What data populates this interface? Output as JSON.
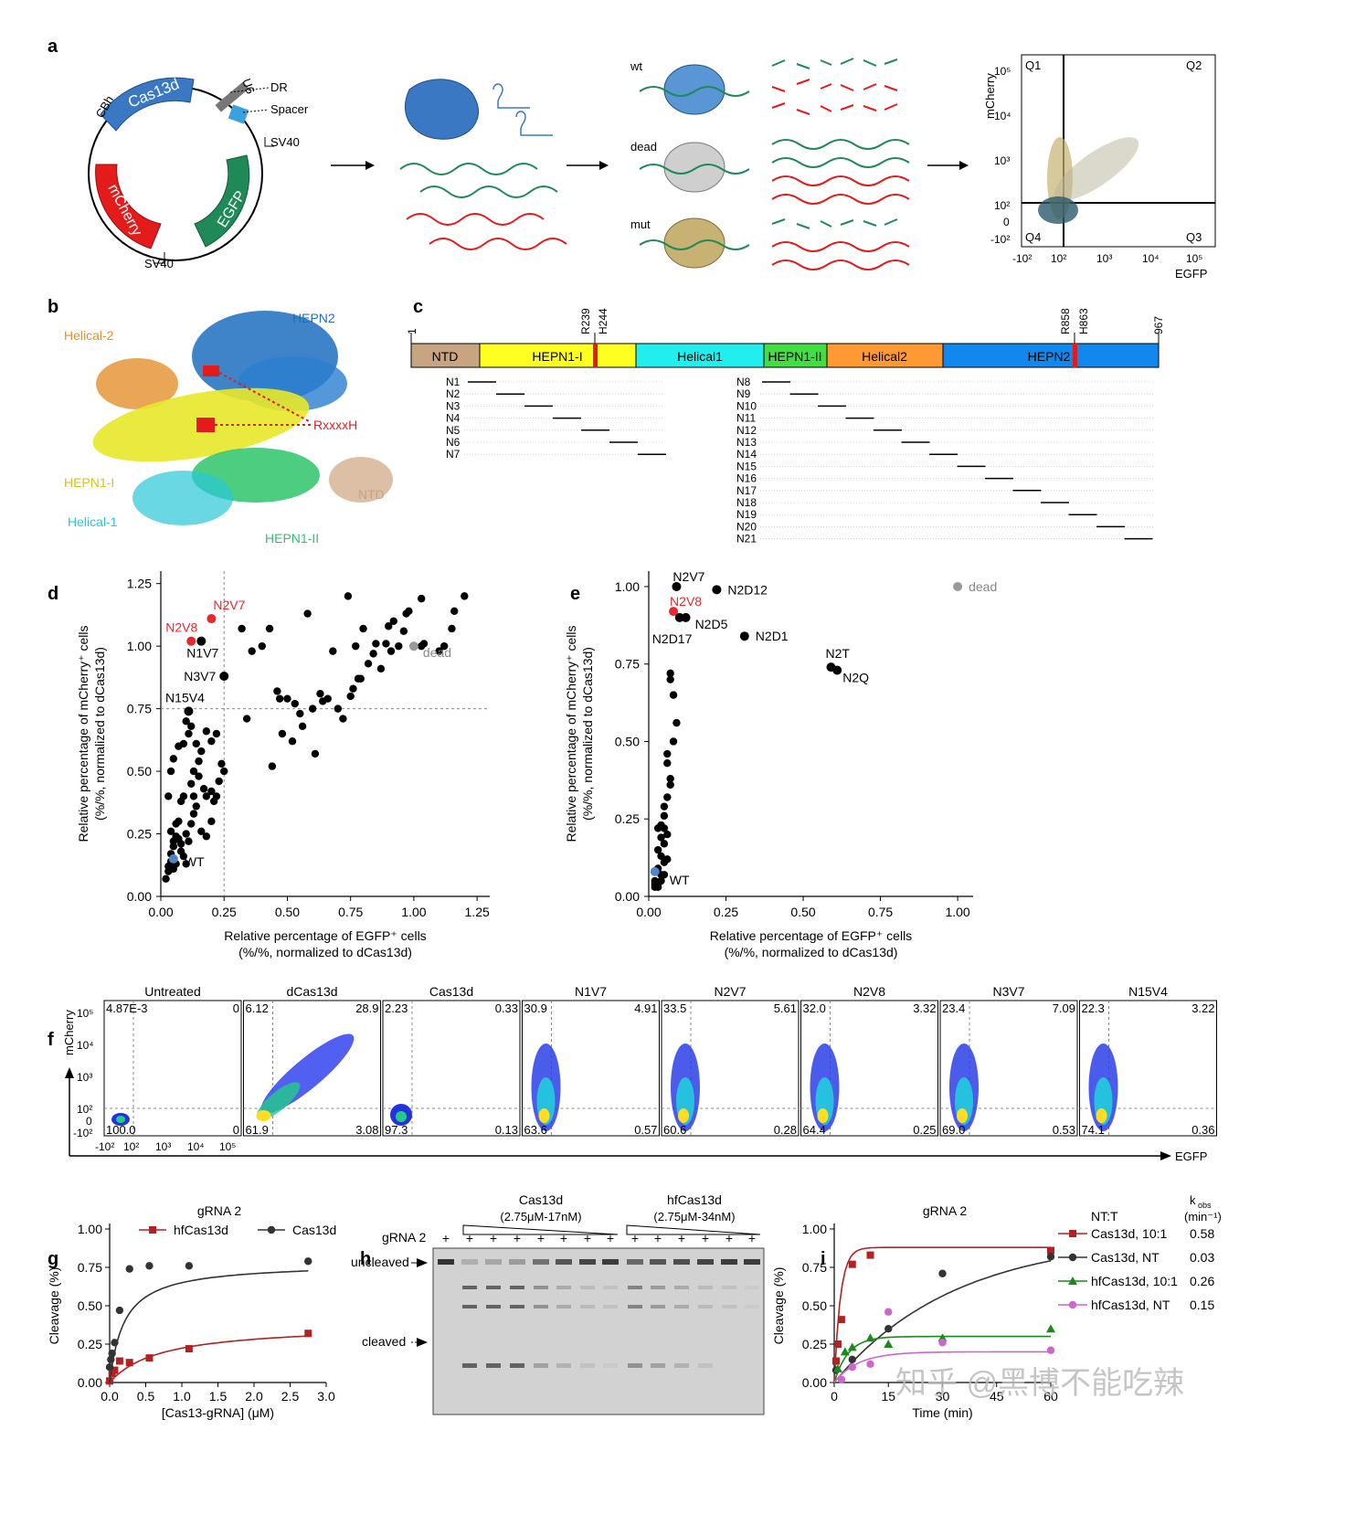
{
  "panel_labels": [
    "a",
    "b",
    "c",
    "d",
    "e",
    "f",
    "g",
    "h",
    "i"
  ],
  "panel_a": {
    "plasmid": {
      "cas": "Cas13d",
      "cbh": "CBh",
      "u6": "U6",
      "dr": "DR",
      "spacer": "Spacer",
      "sv40_top": "SV40",
      "sv40_bottom": "SV40",
      "mcherry": "mCherry",
      "egfp": "EGFP"
    },
    "states": [
      "wt",
      "dead",
      "mut"
    ],
    "flow": {
      "ylabel": "mCherry",
      "xlabel": "EGFP",
      "q1": "Q1",
      "q2": "Q2",
      "q3": "Q3",
      "q4": "Q4",
      "yticks": [
        "10⁵",
        "10⁴",
        "10³",
        "10²",
        "0",
        "-10²"
      ],
      "xticks": [
        "-10²",
        "10²",
        "10³",
        "10⁴",
        "10⁵"
      ]
    }
  },
  "panel_b": {
    "labels": [
      "HEPN2",
      "Helical-2",
      "HEPN1-I",
      "Helical-1",
      "HEPN1-II",
      "NTD",
      "RxxxxH"
    ]
  },
  "panel_c": {
    "domains": [
      "NTD",
      "HEPN1-I",
      "Helical1",
      "HEPN1-II",
      "Helical2",
      "HEPN2"
    ],
    "domain_colors": [
      "#c9a480",
      "#ffff22",
      "#22eeee",
      "#44dd44",
      "#ff9933",
      "#1188ee"
    ],
    "positions": [
      "1",
      "R239",
      "H244",
      "R858",
      "H863",
      "967"
    ],
    "rows_left": [
      "N1",
      "N2",
      "N3",
      "N4",
      "N5",
      "N6",
      "N7"
    ],
    "rows_right": [
      "N8",
      "N9",
      "N10",
      "N11",
      "N12",
      "N13",
      "N14",
      "N15",
      "N16",
      "N17",
      "N18",
      "N19",
      "N20",
      "N21"
    ]
  },
  "panel_f": {
    "ylabel": "mCherry",
    "xlabel": "EGFP",
    "yticks": [
      "10⁵",
      "10⁴",
      "10³",
      "10²",
      "0",
      "-10²"
    ],
    "xticks": [
      "-10²",
      "10²",
      "10³",
      "10⁴",
      "10⁵"
    ],
    "plots": [
      {
        "title": "Untreated",
        "q1": "4.87E-3",
        "q2": "0",
        "q4": "100.0",
        "q3": "0"
      },
      {
        "title": "dCas13d",
        "q1": "6.12",
        "q2": "28.9",
        "q4": "61.9",
        "q3": "3.08"
      },
      {
        "title": "Cas13d",
        "q1": "2.23",
        "q2": "0.33",
        "q4": "97.3",
        "q3": "0.13"
      },
      {
        "title": "N1V7",
        "q1": "30.9",
        "q2": "4.91",
        "q4": "63.6",
        "q3": "0.57"
      },
      {
        "title": "N2V7",
        "q1": "33.5",
        "q2": "5.61",
        "q4": "60.6",
        "q3": "0.28"
      },
      {
        "title": "N2V8",
        "q1": "32.0",
        "q2": "3.32",
        "q4": "64.4",
        "q3": "0.25"
      },
      {
        "title": "N3V7",
        "q1": "23.4",
        "q2": "7.09",
        "q4": "69.0",
        "q3": "0.53"
      },
      {
        "title": "N15V4",
        "q1": "22.3",
        "q2": "3.22",
        "q4": "74.1",
        "q3": "0.36"
      }
    ]
  },
  "panel_h": {
    "group1": "Cas13d",
    "group1_range": "(2.75μM-17nM)",
    "group2": "hfCas13d",
    "group2_range": "(2.75μM-34nM)",
    "row_label": "gRNA 2",
    "plus": "+",
    "uncleaved": "uncleaved",
    "cleaved": "cleaved"
  },
  "watermark": "知乎 @黑博不能吃辣",
  "chart_data": [
    {
      "id": "d",
      "type": "scatter",
      "xlabel": "Relative percentage of EGFP⁺ cells",
      "xlabel2": "(%/%, normalized to dCas13d)",
      "ylabel": "Relative percentage of mCherry⁺ cells",
      "ylabel2": "(%/%, normalized to dCas13d)",
      "xlim": [
        0,
        1.3
      ],
      "ylim": [
        0,
        1.3
      ],
      "xticks": [
        0,
        0.25,
        0.5,
        0.75,
        1.0,
        1.25
      ],
      "xtick_labels": [
        "0.00",
        "0.25",
        "0.50",
        "0.75",
        "1.00",
        "1.25"
      ],
      "yticks": [
        0,
        0.25,
        0.5,
        0.75,
        1.0,
        1.25
      ],
      "ytick_labels": [
        "0.00",
        "0.25",
        "0.50",
        "0.75",
        "1.00",
        "1.25"
      ],
      "threshold_x": 0.25,
      "threshold_y": 0.75,
      "labeled": [
        {
          "name": "N2V7",
          "x": 0.2,
          "y": 1.11,
          "color": "#e8282e",
          "text_color": "#e8282e"
        },
        {
          "name": "N2V8",
          "x": 0.12,
          "y": 1.02,
          "color": "#e8282e",
          "text_color": "#e8282e"
        },
        {
          "name": "N1V7",
          "x": 0.16,
          "y": 1.02,
          "color": "#000000",
          "text_color": "#000000"
        },
        {
          "name": "N3V7",
          "x": 0.25,
          "y": 0.88,
          "color": "#000000",
          "text_color": "#000000"
        },
        {
          "name": "N15V4",
          "x": 0.11,
          "y": 0.74,
          "color": "#000000",
          "text_color": "#000000"
        },
        {
          "name": "WT",
          "x": 0.05,
          "y": 0.15,
          "color": "#4a86c8",
          "text_color": "#000000"
        },
        {
          "name": "dead",
          "x": 1.0,
          "y": 1.0,
          "color": "#999999",
          "text_color": "#888888"
        }
      ],
      "points": [
        [
          0.02,
          0.07
        ],
        [
          0.03,
          0.1
        ],
        [
          0.03,
          0.12
        ],
        [
          0.04,
          0.14
        ],
        [
          0.04,
          0.17
        ],
        [
          0.05,
          0.2
        ],
        [
          0.05,
          0.22
        ],
        [
          0.06,
          0.24
        ],
        [
          0.07,
          0.23
        ],
        [
          0.08,
          0.21
        ],
        [
          0.08,
          0.18
        ],
        [
          0.06,
          0.13
        ],
        [
          0.05,
          0.11
        ],
        [
          0.09,
          0.16
        ],
        [
          0.1,
          0.13
        ],
        [
          0.1,
          0.25
        ],
        [
          0.11,
          0.22
        ],
        [
          0.07,
          0.3
        ],
        [
          0.08,
          0.38
        ],
        [
          0.09,
          0.4
        ],
        [
          0.12,
          0.29
        ],
        [
          0.13,
          0.33
        ],
        [
          0.14,
          0.36
        ],
        [
          0.12,
          0.45
        ],
        [
          0.13,
          0.5
        ],
        [
          0.15,
          0.48
        ],
        [
          0.17,
          0.43
        ],
        [
          0.18,
          0.4
        ],
        [
          0.2,
          0.42
        ],
        [
          0.21,
          0.38
        ],
        [
          0.22,
          0.4
        ],
        [
          0.16,
          0.26
        ],
        [
          0.18,
          0.24
        ],
        [
          0.2,
          0.3
        ],
        [
          0.03,
          0.4
        ],
        [
          0.04,
          0.5
        ],
        [
          0.05,
          0.55
        ],
        [
          0.07,
          0.6
        ],
        [
          0.09,
          0.61
        ],
        [
          0.11,
          0.65
        ],
        [
          0.1,
          0.7
        ],
        [
          0.12,
          0.68
        ],
        [
          0.14,
          0.61
        ],
        [
          0.16,
          0.58
        ],
        [
          0.18,
          0.66
        ],
        [
          0.2,
          0.62
        ],
        [
          0.22,
          0.65
        ],
        [
          0.24,
          0.53
        ],
        [
          0.23,
          0.46
        ],
        [
          0.25,
          0.5
        ],
        [
          0.15,
          0.54
        ],
        [
          0.13,
          0.4
        ],
        [
          0.06,
          0.29
        ],
        [
          0.04,
          0.26
        ],
        [
          0.32,
          1.07
        ],
        [
          0.34,
          0.71
        ],
        [
          0.36,
          0.98
        ],
        [
          0.4,
          1.0
        ],
        [
          0.43,
          1.07
        ],
        [
          0.44,
          0.52
        ],
        [
          0.46,
          0.82
        ],
        [
          0.47,
          0.79
        ],
        [
          0.48,
          0.65
        ],
        [
          0.5,
          0.79
        ],
        [
          0.52,
          0.62
        ],
        [
          0.53,
          0.77
        ],
        [
          0.55,
          0.73
        ],
        [
          0.56,
          0.68
        ],
        [
          0.58,
          1.13
        ],
        [
          0.6,
          0.75
        ],
        [
          0.61,
          0.57
        ],
        [
          0.63,
          0.81
        ],
        [
          0.64,
          0.78
        ],
        [
          0.66,
          0.79
        ],
        [
          0.68,
          0.98
        ],
        [
          0.7,
          0.75
        ],
        [
          0.72,
          0.71
        ],
        [
          0.74,
          1.2
        ],
        [
          0.75,
          0.8
        ],
        [
          0.76,
          0.83
        ],
        [
          0.78,
          0.87
        ],
        [
          0.79,
          0.87
        ],
        [
          0.82,
          0.93
        ],
        [
          0.84,
          0.97
        ],
        [
          0.87,
          0.91
        ],
        [
          0.89,
          1.01
        ],
        [
          0.91,
          0.98
        ],
        [
          0.92,
          1.1
        ],
        [
          0.94,
          1.0
        ],
        [
          0.96,
          1.06
        ],
        [
          0.98,
          1.14
        ],
        [
          1.03,
          1.19
        ],
        [
          1.04,
          1.01
        ],
        [
          1.1,
          0.98
        ],
        [
          1.12,
          1.0
        ],
        [
          1.15,
          1.07
        ],
        [
          1.16,
          1.14
        ],
        [
          1.2,
          1.2
        ],
        [
          1.03,
          1.0
        ],
        [
          0.77,
          1.0
        ],
        [
          0.8,
          1.07
        ],
        [
          0.85,
          1.01
        ],
        [
          0.9,
          1.08
        ],
        [
          0.97,
          1.13
        ]
      ]
    },
    {
      "id": "e",
      "type": "scatter",
      "xlabel": "Relative percentage of EGFP⁺ cells",
      "xlabel2": "(%/%, normalized to dCas13d)",
      "ylabel": "Relative percentage of mCherry⁺ cells",
      "ylabel2": "(%/%, normalized to dCas13d)",
      "xlim": [
        0,
        1.05
      ],
      "ylim": [
        0,
        1.05
      ],
      "xticks": [
        0,
        0.25,
        0.5,
        0.75,
        1.0
      ],
      "xtick_labels": [
        "0.00",
        "0.25",
        "0.50",
        "0.75",
        "1.00"
      ],
      "yticks": [
        0,
        0.25,
        0.5,
        0.75,
        1.0
      ],
      "ytick_labels": [
        "0.00",
        "0.25",
        "0.50",
        "0.75",
        "1.00"
      ],
      "labeled": [
        {
          "name": "N2V7",
          "x": 0.09,
          "y": 1.0,
          "color": "#000000",
          "text_color": "#000000"
        },
        {
          "name": "N2D12",
          "x": 0.22,
          "y": 0.99,
          "color": "#000000",
          "text_color": "#000000"
        },
        {
          "name": "N2V8",
          "x": 0.08,
          "y": 0.92,
          "color": "#e8282e",
          "text_color": "#e8282e"
        },
        {
          "name": "N2D5",
          "x": 0.12,
          "y": 0.9,
          "color": "#000000",
          "text_color": "#000000"
        },
        {
          "name": "N2D17",
          "x": 0.1,
          "y": 0.9,
          "color": "#000000",
          "text_color": "#000000"
        },
        {
          "name": "N2D1",
          "x": 0.31,
          "y": 0.84,
          "color": "#000000",
          "text_color": "#000000"
        },
        {
          "name": "N2T",
          "x": 0.59,
          "y": 0.74,
          "color": "#000000",
          "text_color": "#000000"
        },
        {
          "name": "N2Q",
          "x": 0.61,
          "y": 0.73,
          "color": "#000000",
          "text_color": "#000000"
        },
        {
          "name": "WT",
          "x": 0.02,
          "y": 0.08,
          "color": "#4a86c8",
          "text_color": "#000000"
        },
        {
          "name": "dead",
          "x": 1.0,
          "y": 1.0,
          "color": "#999999",
          "text_color": "#888888"
        }
      ],
      "points": [
        [
          0.07,
          0.72
        ],
        [
          0.07,
          0.7
        ],
        [
          0.08,
          0.65
        ],
        [
          0.09,
          0.56
        ],
        [
          0.08,
          0.5
        ],
        [
          0.06,
          0.46
        ],
        [
          0.06,
          0.43
        ],
        [
          0.07,
          0.38
        ],
        [
          0.07,
          0.36
        ],
        [
          0.06,
          0.32
        ],
        [
          0.05,
          0.29
        ],
        [
          0.05,
          0.26
        ],
        [
          0.04,
          0.23
        ],
        [
          0.05,
          0.22
        ],
        [
          0.06,
          0.2
        ],
        [
          0.03,
          0.22
        ],
        [
          0.04,
          0.19
        ],
        [
          0.05,
          0.17
        ],
        [
          0.03,
          0.15
        ],
        [
          0.04,
          0.13
        ],
        [
          0.05,
          0.11
        ],
        [
          0.03,
          0.09
        ],
        [
          0.04,
          0.07
        ],
        [
          0.02,
          0.05
        ],
        [
          0.02,
          0.04
        ],
        [
          0.03,
          0.04
        ],
        [
          0.03,
          0.03
        ],
        [
          0.02,
          0.03
        ],
        [
          0.04,
          0.05
        ],
        [
          0.06,
          0.12
        ],
        [
          0.05,
          0.07
        ]
      ]
    },
    {
      "id": "g",
      "type": "line",
      "title": "gRNA 2",
      "xlabel": "[Cas13-gRNA] (μM)",
      "ylabel": "Cleavage (%)",
      "xlim": [
        0,
        3.0
      ],
      "ylim": [
        0,
        1.0
      ],
      "xticks": [
        0,
        0.5,
        1.0,
        1.5,
        2.0,
        2.5,
        3.0
      ],
      "xtick_labels": [
        "0.0",
        "0.5",
        "1.0",
        "1.5",
        "2.0",
        "2.5",
        "3.0"
      ],
      "yticks": [
        0,
        0.25,
        0.5,
        0.75,
        1.0
      ],
      "ytick_labels": [
        "0.00",
        "0.25",
        "0.50",
        "0.75",
        "1.00"
      ],
      "series": [
        {
          "name": "hfCas13d",
          "color": "#b22222",
          "marker": "square",
          "x": [
            0.0,
            0.034,
            0.069,
            0.138,
            0.275,
            0.55,
            1.1,
            2.75
          ],
          "y": [
            0.01,
            0.06,
            0.08,
            0.14,
            0.13,
            0.16,
            0.22,
            0.32
          ],
          "fit": {
            "vmax": 0.38,
            "km": 0.7
          }
        },
        {
          "name": "Cas13d",
          "color": "#333333",
          "marker": "circle",
          "x": [
            0.0,
            0.017,
            0.034,
            0.069,
            0.138,
            0.275,
            0.55,
            1.1,
            2.75
          ],
          "y": [
            0.1,
            0.15,
            0.19,
            0.26,
            0.47,
            0.74,
            0.76,
            0.76,
            0.79
          ],
          "fit": {
            "vmax": 0.78,
            "km": 0.2
          }
        }
      ]
    },
    {
      "id": "i",
      "type": "line",
      "title": "gRNA 2",
      "xlabel": "Time (min)",
      "ylabel": "Cleavage (%)",
      "xlim": [
        0,
        60
      ],
      "ylim": [
        0,
        1.0
      ],
      "xticks": [
        0,
        15,
        30,
        45,
        60
      ],
      "xtick_labels": [
        "0",
        "15",
        "30",
        "45",
        "60"
      ],
      "yticks": [
        0,
        0.25,
        0.5,
        0.75,
        1.0
      ],
      "ytick_labels": [
        "0.00",
        "0.25",
        "0.50",
        "0.75",
        "1.00"
      ],
      "legend_header": "NT:T",
      "kobs_header": "k",
      "kobs_sub": "obs",
      "kobs_unit": "(min⁻¹)",
      "series": [
        {
          "name": "Cas13d, 10:1",
          "kobs": "0.58",
          "color": "#b22222",
          "marker": "square",
          "x": [
            0.5,
            1,
            2,
            5,
            10,
            60
          ],
          "y": [
            0.14,
            0.25,
            0.41,
            0.77,
            0.83,
            0.86
          ],
          "fit": {
            "plateau": 0.88,
            "k": 0.58
          }
        },
        {
          "name": "Cas13d, NT",
          "kobs": "0.03",
          "color": "#333333",
          "marker": "circle",
          "x": [
            0.5,
            5,
            15,
            30,
            60
          ],
          "y": [
            0.08,
            0.15,
            0.35,
            0.71,
            0.82
          ],
          "fit": {
            "plateau": 0.95,
            "k": 0.03
          }
        },
        {
          "name": "hfCas13d, 10:1",
          "kobs": "0.26",
          "color": "#1a8a1a",
          "marker": "triangle",
          "x": [
            1,
            3,
            5,
            10,
            15,
            30,
            60
          ],
          "y": [
            0.09,
            0.2,
            0.23,
            0.29,
            0.25,
            0.29,
            0.35
          ],
          "fit": {
            "plateau": 0.3,
            "k": 0.26
          }
        },
        {
          "name": "hfCas13d, NT",
          "kobs": "0.15",
          "color": "#cc66cc",
          "marker": "circle",
          "x": [
            2,
            5,
            10,
            15,
            30,
            60
          ],
          "y": [
            0.02,
            0.1,
            0.12,
            0.46,
            0.26,
            0.21
          ],
          "fit": {
            "plateau": 0.2,
            "k": 0.15
          }
        }
      ]
    }
  ]
}
